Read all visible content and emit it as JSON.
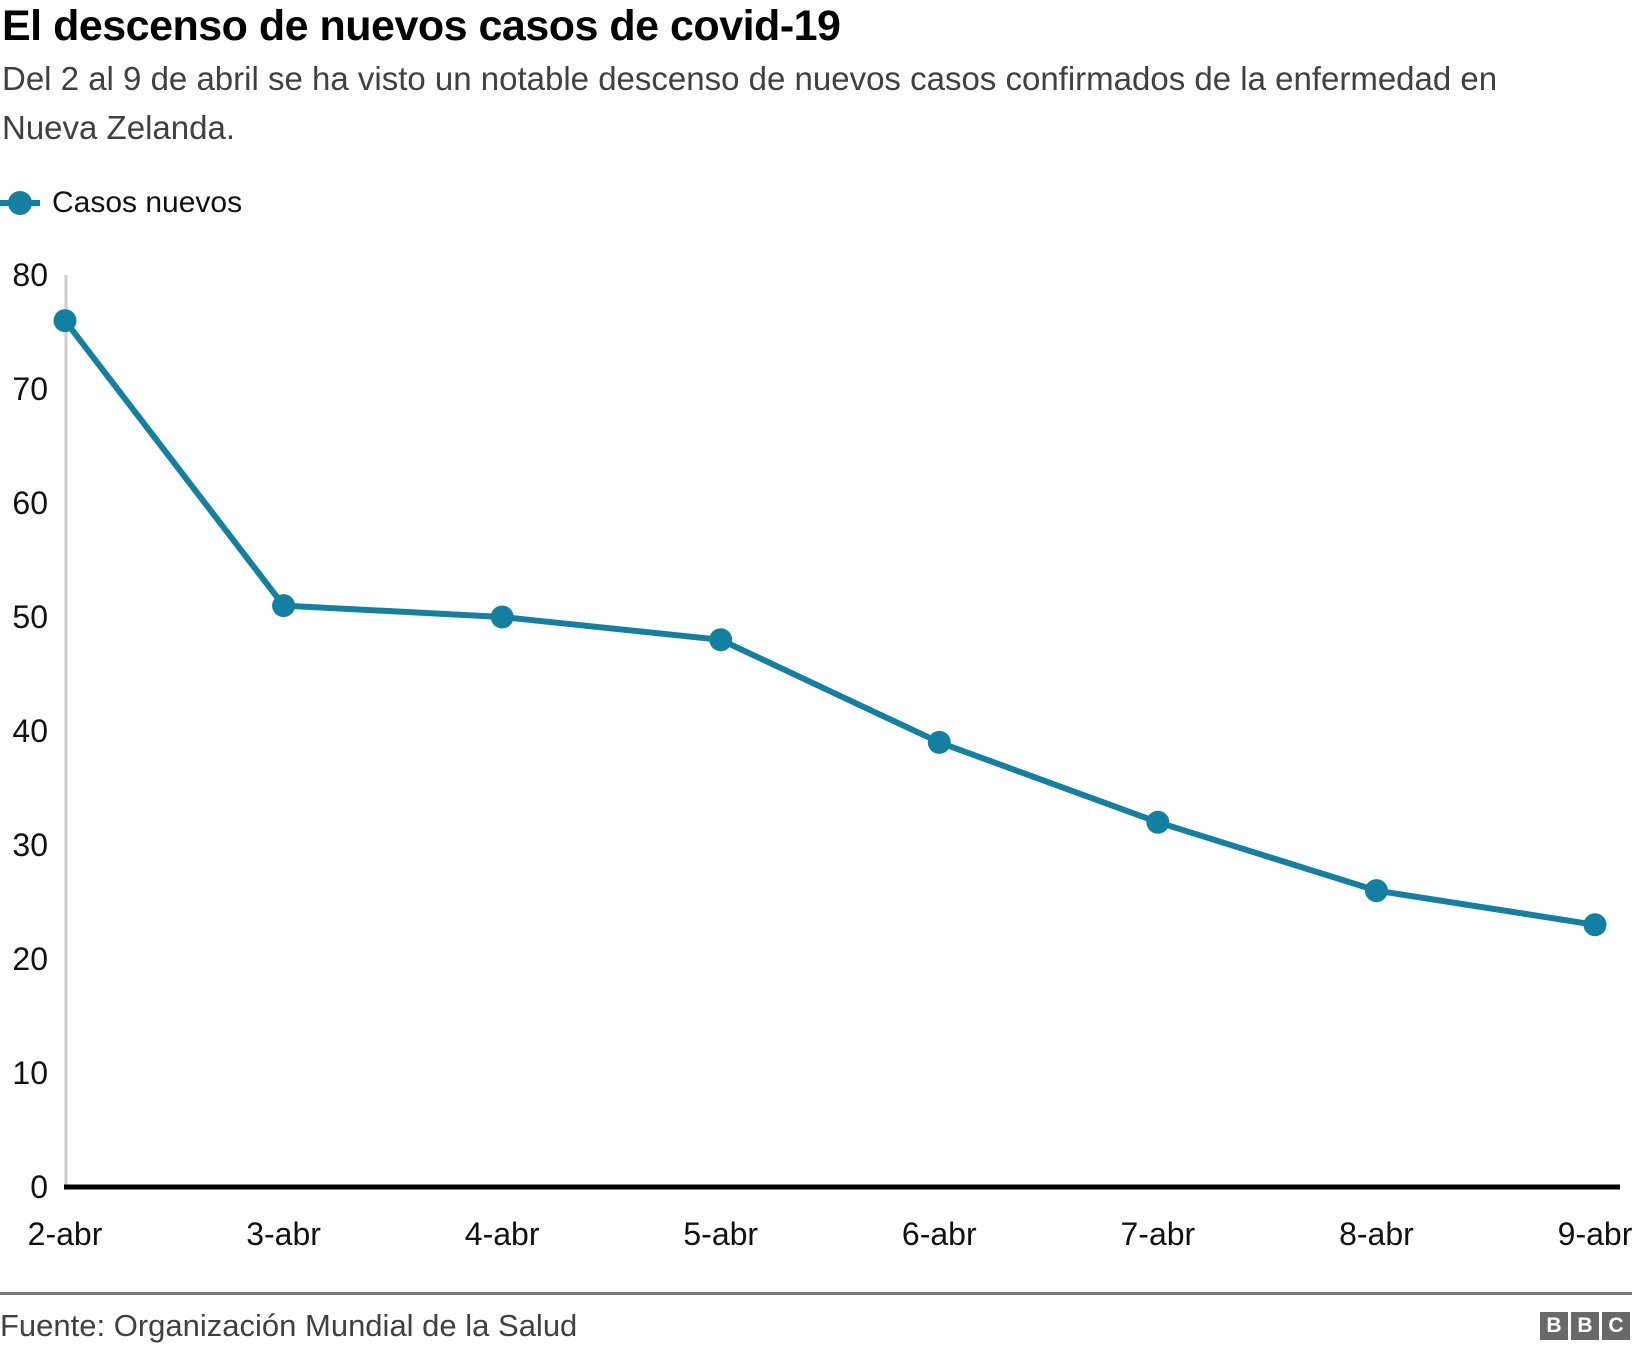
{
  "header": {
    "title": "El descenso de nuevos casos de covid-19",
    "subtitle": "Del 2 al 9 de abril se ha visto un notable descenso de nuevos casos confirmados de la enfermedad en Nueva Zelanda."
  },
  "legend": {
    "label": "Casos nuevos"
  },
  "chart_data": {
    "type": "line",
    "title": "El descenso de nuevos casos de covid-19",
    "categories": [
      "2-abr",
      "3-abr",
      "4-abr",
      "5-abr",
      "6-abr",
      "7-abr",
      "8-abr",
      "9-abr"
    ],
    "series": [
      {
        "name": "Casos nuevos",
        "values": [
          76,
          51,
          50,
          48,
          39,
          32,
          26,
          23
        ]
      }
    ],
    "xlabel": "",
    "ylabel": "",
    "ylim": [
      0,
      80
    ],
    "yticks": [
      0,
      10,
      20,
      30,
      40,
      50,
      60,
      70,
      80
    ],
    "grid": false,
    "legend_position": "top-left",
    "line_color": "#1380A1",
    "marker": "circle"
  },
  "footer": {
    "source": "Fuente: Organización Mundial de la Salud",
    "logo_letters": [
      "B",
      "B",
      "C"
    ]
  },
  "colors": {
    "accent": "#1380A1",
    "title_text": "#000000",
    "subtitle_text": "#404040",
    "axis_text": "#111111",
    "y_axis_line": "#cccccc",
    "x_axis_line": "#000000",
    "divider": "#7b7b7b",
    "logo_bg": "#696969"
  }
}
